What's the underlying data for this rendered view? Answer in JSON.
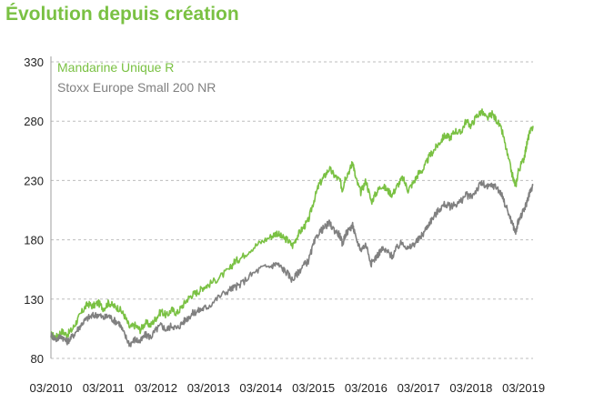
{
  "title": "Évolution depuis création",
  "chart_data": {
    "type": "line",
    "title": "Évolution depuis création",
    "xlabel": "",
    "ylabel": "",
    "ylim": [
      80,
      330
    ],
    "yticks": [
      80,
      130,
      180,
      230,
      280,
      330
    ],
    "xlim": [
      2010.0,
      2019.18
    ],
    "xticks": [
      {
        "x": 2010.0,
        "label": "03/2010"
      },
      {
        "x": 2011.0,
        "label": "03/2011"
      },
      {
        "x": 2012.0,
        "label": "03/2012"
      },
      {
        "x": 2013.0,
        "label": "03/2013"
      },
      {
        "x": 2014.0,
        "label": "03/2014"
      },
      {
        "x": 2015.0,
        "label": "03/2015"
      },
      {
        "x": 2016.0,
        "label": "03/2016"
      },
      {
        "x": 2017.0,
        "label": "03/2017"
      },
      {
        "x": 2018.0,
        "label": "03/2018"
      },
      {
        "x": 2019.0,
        "label": "03/2019"
      }
    ],
    "grid": "horizontal dashed",
    "legend_position": "top-left",
    "series": [
      {
        "name": "Mandarine Unique R",
        "color": "#7ac143",
        "points": [
          [
            2010.0,
            100
          ],
          [
            2010.1,
            98
          ],
          [
            2010.2,
            103
          ],
          [
            2010.3,
            100
          ],
          [
            2010.4,
            104
          ],
          [
            2010.5,
            112
          ],
          [
            2010.6,
            120
          ],
          [
            2010.7,
            126
          ],
          [
            2010.8,
            124
          ],
          [
            2010.9,
            127
          ],
          [
            2011.0,
            122
          ],
          [
            2011.1,
            127
          ],
          [
            2011.2,
            124
          ],
          [
            2011.3,
            122
          ],
          [
            2011.4,
            116
          ],
          [
            2011.5,
            106
          ],
          [
            2011.6,
            108
          ],
          [
            2011.7,
            104
          ],
          [
            2011.8,
            110
          ],
          [
            2011.9,
            108
          ],
          [
            2012.0,
            114
          ],
          [
            2012.1,
            120
          ],
          [
            2012.2,
            116
          ],
          [
            2012.3,
            121
          ],
          [
            2012.4,
            118
          ],
          [
            2012.5,
            124
          ],
          [
            2012.6,
            130
          ],
          [
            2012.7,
            134
          ],
          [
            2012.8,
            136
          ],
          [
            2012.9,
            140
          ],
          [
            2013.0,
            142
          ],
          [
            2013.2,
            148
          ],
          [
            2013.4,
            155
          ],
          [
            2013.5,
            162
          ],
          [
            2013.6,
            164
          ],
          [
            2013.8,
            172
          ],
          [
            2014.0,
            178
          ],
          [
            2014.2,
            183
          ],
          [
            2014.3,
            186
          ],
          [
            2014.4,
            182
          ],
          [
            2014.5,
            180
          ],
          [
            2014.6,
            175
          ],
          [
            2014.7,
            184
          ],
          [
            2014.8,
            190
          ],
          [
            2014.9,
            196
          ],
          [
            2015.0,
            212
          ],
          [
            2015.1,
            226
          ],
          [
            2015.2,
            233
          ],
          [
            2015.3,
            240
          ],
          [
            2015.4,
            234
          ],
          [
            2015.5,
            230
          ],
          [
            2015.55,
            222
          ],
          [
            2015.6,
            232
          ],
          [
            2015.7,
            240
          ],
          [
            2015.75,
            246
          ],
          [
            2015.8,
            232
          ],
          [
            2015.9,
            220
          ],
          [
            2016.0,
            230
          ],
          [
            2016.1,
            212
          ],
          [
            2016.2,
            220
          ],
          [
            2016.3,
            226
          ],
          [
            2016.4,
            222
          ],
          [
            2016.5,
            218
          ],
          [
            2016.6,
            226
          ],
          [
            2016.7,
            232
          ],
          [
            2016.8,
            222
          ],
          [
            2016.9,
            228
          ],
          [
            2017.0,
            236
          ],
          [
            2017.1,
            240
          ],
          [
            2017.2,
            250
          ],
          [
            2017.3,
            256
          ],
          [
            2017.4,
            262
          ],
          [
            2017.5,
            268
          ],
          [
            2017.6,
            266
          ],
          [
            2017.7,
            272
          ],
          [
            2017.8,
            270
          ],
          [
            2017.9,
            280
          ],
          [
            2018.0,
            276
          ],
          [
            2018.1,
            284
          ],
          [
            2018.2,
            288
          ],
          [
            2018.3,
            282
          ],
          [
            2018.4,
            286
          ],
          [
            2018.5,
            280
          ],
          [
            2018.6,
            270
          ],
          [
            2018.7,
            250
          ],
          [
            2018.8,
            232
          ],
          [
            2018.85,
            225
          ],
          [
            2018.9,
            238
          ],
          [
            2019.0,
            248
          ],
          [
            2019.05,
            258
          ],
          [
            2019.1,
            268
          ],
          [
            2019.18,
            276
          ]
        ]
      },
      {
        "name": "Stoxx Europe Small 200 NR",
        "color": "#808080",
        "points": [
          [
            2010.0,
            100
          ],
          [
            2010.1,
            96
          ],
          [
            2010.2,
            99
          ],
          [
            2010.3,
            94
          ],
          [
            2010.4,
            98
          ],
          [
            2010.5,
            104
          ],
          [
            2010.6,
            110
          ],
          [
            2010.7,
            114
          ],
          [
            2010.8,
            116
          ],
          [
            2010.9,
            117
          ],
          [
            2011.0,
            114
          ],
          [
            2011.1,
            116
          ],
          [
            2011.2,
            112
          ],
          [
            2011.3,
            110
          ],
          [
            2011.4,
            100
          ],
          [
            2011.5,
            92
          ],
          [
            2011.6,
            96
          ],
          [
            2011.7,
            94
          ],
          [
            2011.8,
            100
          ],
          [
            2011.9,
            98
          ],
          [
            2012.0,
            104
          ],
          [
            2012.1,
            108
          ],
          [
            2012.2,
            104
          ],
          [
            2012.3,
            108
          ],
          [
            2012.4,
            105
          ],
          [
            2012.5,
            110
          ],
          [
            2012.6,
            114
          ],
          [
            2012.7,
            118
          ],
          [
            2012.8,
            120
          ],
          [
            2012.9,
            122
          ],
          [
            2013.0,
            124
          ],
          [
            2013.2,
            132
          ],
          [
            2013.4,
            138
          ],
          [
            2013.5,
            140
          ],
          [
            2013.6,
            142
          ],
          [
            2013.8,
            150
          ],
          [
            2014.0,
            156
          ],
          [
            2014.2,
            158
          ],
          [
            2014.3,
            160
          ],
          [
            2014.4,
            156
          ],
          [
            2014.5,
            152
          ],
          [
            2014.6,
            146
          ],
          [
            2014.7,
            152
          ],
          [
            2014.8,
            158
          ],
          [
            2014.9,
            162
          ],
          [
            2015.0,
            176
          ],
          [
            2015.1,
            186
          ],
          [
            2015.2,
            190
          ],
          [
            2015.3,
            194
          ],
          [
            2015.4,
            188
          ],
          [
            2015.5,
            184
          ],
          [
            2015.55,
            176
          ],
          [
            2015.6,
            184
          ],
          [
            2015.7,
            190
          ],
          [
            2015.75,
            192
          ],
          [
            2015.8,
            182
          ],
          [
            2015.9,
            172
          ],
          [
            2016.0,
            176
          ],
          [
            2016.1,
            160
          ],
          [
            2016.2,
            166
          ],
          [
            2016.3,
            172
          ],
          [
            2016.4,
            170
          ],
          [
            2016.5,
            166
          ],
          [
            2016.6,
            174
          ],
          [
            2016.7,
            178
          ],
          [
            2016.8,
            172
          ],
          [
            2016.9,
            176
          ],
          [
            2017.0,
            180
          ],
          [
            2017.1,
            186
          ],
          [
            2017.2,
            194
          ],
          [
            2017.3,
            200
          ],
          [
            2017.4,
            206
          ],
          [
            2017.5,
            210
          ],
          [
            2017.6,
            208
          ],
          [
            2017.7,
            210
          ],
          [
            2017.8,
            212
          ],
          [
            2017.9,
            218
          ],
          [
            2018.0,
            216
          ],
          [
            2018.1,
            222
          ],
          [
            2018.2,
            228
          ],
          [
            2018.3,
            224
          ],
          [
            2018.4,
            226
          ],
          [
            2018.5,
            224
          ],
          [
            2018.6,
            216
          ],
          [
            2018.7,
            204
          ],
          [
            2018.8,
            192
          ],
          [
            2018.85,
            186
          ],
          [
            2018.9,
            196
          ],
          [
            2019.0,
            204
          ],
          [
            2019.05,
            210
          ],
          [
            2019.1,
            218
          ],
          [
            2019.18,
            226
          ]
        ]
      }
    ]
  }
}
